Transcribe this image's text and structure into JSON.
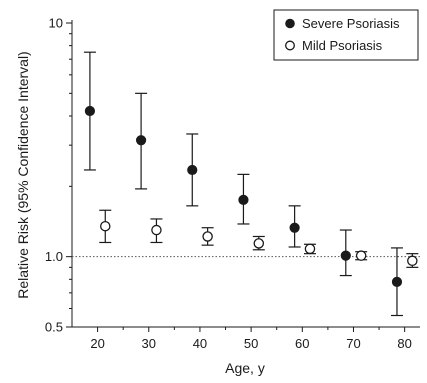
{
  "chart_data": {
    "type": "scatter",
    "xlabel": "Age, y",
    "ylabel": "Relative Risk (95% Confidence Interval)",
    "yscale": "log",
    "ylim": [
      0.5,
      10
    ],
    "xlim": [
      15,
      83
    ],
    "x_ticks": [
      "20",
      "30",
      "40",
      "50",
      "60",
      "70",
      "80"
    ],
    "y_ticks": [
      "0.5",
      "1.0",
      "10"
    ],
    "y_tick_values": [
      0.5,
      1.0,
      10
    ],
    "reference_line": 1.0,
    "legend_position": "top-right",
    "series": [
      {
        "name": "Severe Psoriasis",
        "marker": "filled-circle",
        "points": [
          {
            "x": 18.5,
            "y": 4.2,
            "lo": 2.35,
            "hi": 7.5
          },
          {
            "x": 28.5,
            "y": 3.15,
            "lo": 1.95,
            "hi": 5.0
          },
          {
            "x": 38.5,
            "y": 2.35,
            "lo": 1.65,
            "hi": 3.35
          },
          {
            "x": 48.5,
            "y": 1.75,
            "lo": 1.38,
            "hi": 2.25
          },
          {
            "x": 58.5,
            "y": 1.33,
            "lo": 1.1,
            "hi": 1.65
          },
          {
            "x": 68.5,
            "y": 1.01,
            "lo": 0.83,
            "hi": 1.3
          },
          {
            "x": 78.5,
            "y": 0.78,
            "lo": 0.56,
            "hi": 1.09
          }
        ]
      },
      {
        "name": "Mild Psoriasis",
        "marker": "open-circle",
        "points": [
          {
            "x": 21.5,
            "y": 1.35,
            "lo": 1.15,
            "hi": 1.58
          },
          {
            "x": 31.5,
            "y": 1.3,
            "lo": 1.15,
            "hi": 1.45
          },
          {
            "x": 41.5,
            "y": 1.22,
            "lo": 1.12,
            "hi": 1.33
          },
          {
            "x": 51.5,
            "y": 1.14,
            "lo": 1.07,
            "hi": 1.22
          },
          {
            "x": 61.5,
            "y": 1.08,
            "lo": 1.03,
            "hi": 1.13
          },
          {
            "x": 71.5,
            "y": 1.01,
            "lo": 0.97,
            "hi": 1.05
          },
          {
            "x": 81.5,
            "y": 0.96,
            "lo": 0.9,
            "hi": 1.03
          }
        ]
      }
    ]
  }
}
